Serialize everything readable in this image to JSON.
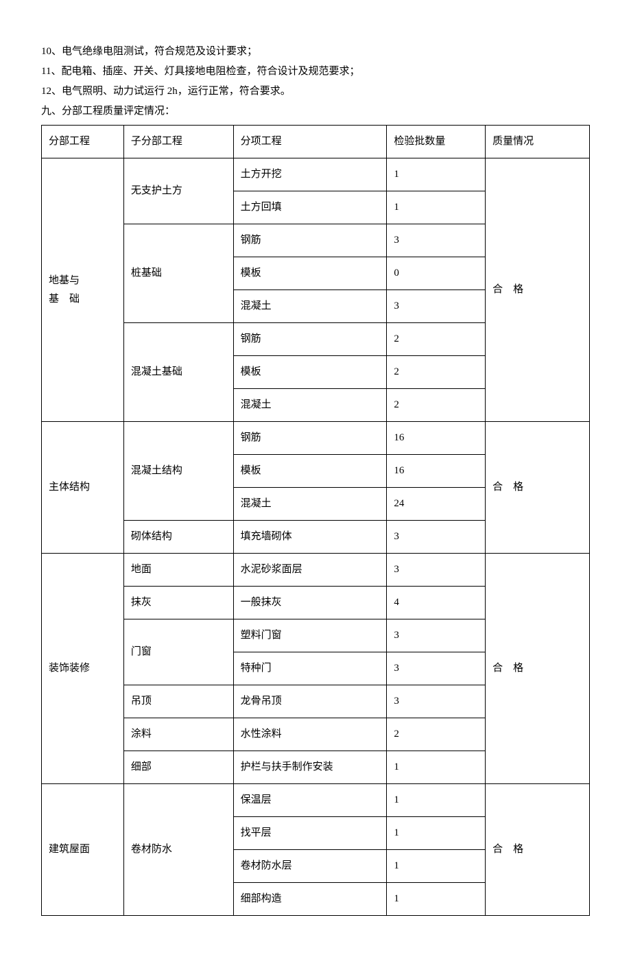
{
  "lines": {
    "l1": "10、电气绝缘电阻测试，符合规范及设计要求；",
    "l2": "11、配电箱、插座、开关、灯具接地电阻检查，符合设计及规范要求；",
    "l3": "12、电气照明、动力试运行 2h，运行正常，符合要求。",
    "l4": "九、分部工程质量评定情况："
  },
  "header": {
    "c1": "分部工程",
    "c2": "子分部工程",
    "c3": "分项工程",
    "c4": "检验批数量",
    "c5": "质量情况"
  },
  "sections": {
    "s1": {
      "name_line1": "地基与",
      "name_line2": "基　础",
      "quality": "合　格",
      "g1": {
        "name": "无支护土方",
        "r1": {
          "item": "土方开挖",
          "qty": "1"
        },
        "r2": {
          "item": "土方回填",
          "qty": "1"
        }
      },
      "g2": {
        "name": "桩基础",
        "r1": {
          "item": "钢筋",
          "qty": "3"
        },
        "r2": {
          "item": "模板",
          "qty": "0"
        },
        "r3": {
          "item": "混凝土",
          "qty": "3"
        }
      },
      "g3": {
        "name": "混凝土基础",
        "r1": {
          "item": "钢筋",
          "qty": "2"
        },
        "r2": {
          "item": "模板",
          "qty": "2"
        },
        "r3": {
          "item": "混凝土",
          "qty": "2"
        }
      }
    },
    "s2": {
      "name": "主体结构",
      "quality": "合　格",
      "g1": {
        "name": "混凝土结构",
        "r1": {
          "item": "钢筋",
          "qty": "16"
        },
        "r2": {
          "item": "模板",
          "qty": "16"
        },
        "r3": {
          "item": "混凝土",
          "qty": "24"
        }
      },
      "g2": {
        "name": "砌体结构",
        "r1": {
          "item": "填充墙砌体",
          "qty": "3"
        }
      }
    },
    "s3": {
      "name": "装饰装修",
      "quality": "合　格",
      "g1": {
        "name": "地面",
        "r1": {
          "item": "水泥砂浆面层",
          "qty": "3"
        }
      },
      "g2": {
        "name": "抹灰",
        "r1": {
          "item": "一般抹灰",
          "qty": "4"
        }
      },
      "g3": {
        "name": "门窗",
        "r1": {
          "item": "塑料门窗",
          "qty": "3"
        },
        "r2": {
          "item": "特种门",
          "qty": "3"
        }
      },
      "g4": {
        "name": "吊顶",
        "r1": {
          "item": "龙骨吊顶",
          "qty": "3"
        }
      },
      "g5": {
        "name": "涂料",
        "r1": {
          "item": "水性涂料",
          "qty": "2"
        }
      },
      "g6": {
        "name": "细部",
        "r1": {
          "item": "护栏与扶手制作安装",
          "qty": "1"
        }
      }
    },
    "s4": {
      "name": "建筑屋面",
      "quality": "合　格",
      "g1": {
        "name": "卷材防水",
        "r1": {
          "item": "保温层",
          "qty": "1"
        },
        "r2": {
          "item": "找平层",
          "qty": "1"
        },
        "r3": {
          "item": "卷材防水层",
          "qty": "1"
        },
        "r4": {
          "item": "细部构造",
          "qty": "1"
        }
      }
    }
  },
  "style": {
    "font_family": "SimSun",
    "font_size_pt": 11,
    "text_color": "#000000",
    "background_color": "#ffffff",
    "border_color": "#000000",
    "column_widths_pct": [
      15,
      20,
      28,
      18,
      19
    ]
  }
}
